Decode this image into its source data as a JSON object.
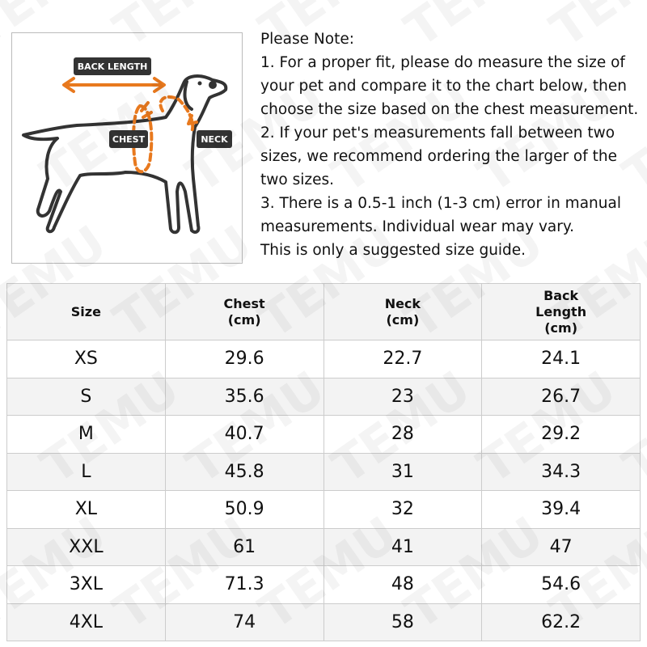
{
  "watermark": "TEMU",
  "diagram": {
    "labels": [
      "BACK LENGTH",
      "CHEST",
      "NECK"
    ]
  },
  "note": {
    "title": "Please Note:",
    "paragraphs": [
      "1. For a proper fit, please do measure the size of your pet and compare it to the chart below, then choose the size based on the chest measurement.",
      "2. If your pet's measurements fall between two sizes, we recommend ordering the larger of the two sizes.",
      "3. There is a 0.5-1 inch (1-3 cm) error in manual measurements. Individual wear may vary.",
      "This is only a suggested size guide."
    ]
  },
  "table": {
    "header": [
      [
        "Size"
      ],
      [
        "Chest",
        "(cm)"
      ],
      [
        "Neck",
        "(cm)"
      ],
      [
        "Back",
        "Length",
        "(cm)"
      ]
    ],
    "rows": [
      [
        "XS",
        "29.6",
        "22.7",
        "24.1"
      ],
      [
        "S",
        "35.6",
        "23",
        "26.7"
      ],
      [
        "M",
        "40.7",
        "28",
        "29.2"
      ],
      [
        "L",
        "45.8",
        "31",
        "34.3"
      ],
      [
        "XL",
        "50.9",
        "32",
        "39.4"
      ],
      [
        "XXL",
        "61",
        "41",
        "47"
      ],
      [
        "3XL",
        "71.3",
        "48",
        "54.6"
      ],
      [
        "4XL",
        "74",
        "58",
        "62.2"
      ]
    ]
  }
}
